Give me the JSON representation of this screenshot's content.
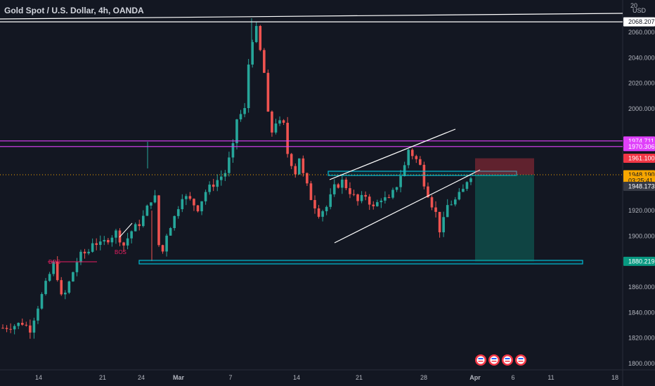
{
  "header": {
    "title": "Gold Spot / U.S. Dollar, 4h, OANDA",
    "currency": "USD",
    "scale_top": "20"
  },
  "chart_data": {
    "type": "candlestick",
    "ylim": [
      1792,
      2080
    ],
    "y_ticks": [
      1800,
      1820,
      1840,
      1860,
      1880,
      1900,
      1920,
      2000,
      2020,
      2040,
      2060
    ],
    "x_ticks": [
      "14",
      "21",
      "24",
      "Mar",
      "7",
      "14",
      "21",
      "28",
      "Apr",
      "6",
      "11",
      "18"
    ],
    "x_tick_bold": [
      "Mar",
      "Apr"
    ],
    "close_trend": [
      [
        0,
        1828
      ],
      [
        3,
        1830
      ],
      [
        5,
        1832
      ],
      [
        7,
        1827
      ],
      [
        9,
        1845
      ],
      [
        11,
        1862
      ],
      [
        13,
        1878
      ],
      [
        14,
        1868
      ],
      [
        15,
        1852
      ],
      [
        16,
        1855
      ],
      [
        18,
        1872
      ],
      [
        19,
        1880
      ],
      [
        20,
        1885
      ],
      [
        22,
        1888
      ],
      [
        23,
        1896
      ],
      [
        25,
        1893
      ],
      [
        27,
        1898
      ],
      [
        29,
        1903
      ],
      [
        31,
        1893
      ],
      [
        33,
        1904
      ],
      [
        35,
        1910
      ],
      [
        36,
        1915
      ],
      [
        38,
        1929
      ],
      [
        38.5,
        1965
      ],
      [
        38.8,
        1950
      ],
      [
        39.2,
        1910
      ],
      [
        40,
        1893
      ],
      [
        41,
        1888
      ],
      [
        42,
        1902
      ],
      [
        44,
        1915
      ],
      [
        46,
        1932
      ],
      [
        48,
        1928
      ],
      [
        50,
        1922
      ],
      [
        52,
        1935
      ],
      [
        55,
        1944
      ],
      [
        57,
        1950
      ],
      [
        59,
        1970
      ],
      [
        60,
        1992
      ],
      [
        62,
        1999
      ],
      [
        63,
        2035
      ],
      [
        64,
        2055
      ],
      [
        65,
        2062
      ],
      [
        66,
        2045
      ],
      [
        67,
        2028
      ],
      [
        68,
        1995
      ],
      [
        69,
        1982
      ],
      [
        70,
        1990
      ],
      [
        72,
        1987
      ],
      [
        73,
        1965
      ],
      [
        75,
        1950
      ],
      [
        76,
        1962
      ],
      [
        77,
        1948
      ],
      [
        79,
        1930
      ],
      [
        81,
        1918
      ],
      [
        83,
        1923
      ],
      [
        85,
        1938
      ],
      [
        87,
        1943
      ],
      [
        89,
        1935
      ],
      [
        91,
        1927
      ],
      [
        93,
        1932
      ],
      [
        95,
        1922
      ],
      [
        97,
        1930
      ],
      [
        99,
        1928
      ],
      [
        101,
        1940
      ],
      [
        102,
        1948
      ],
      [
        103,
        1955
      ],
      [
        104,
        1968
      ],
      [
        106,
        1960
      ],
      [
        107,
        1955
      ],
      [
        108,
        1942
      ],
      [
        110,
        1925
      ],
      [
        111,
        1918
      ],
      [
        112,
        1905
      ],
      [
        113,
        1912
      ],
      [
        114,
        1924
      ],
      [
        116,
        1928
      ],
      [
        118,
        1936
      ],
      [
        119,
        1944
      ],
      [
        120,
        1948
      ]
    ],
    "horizontal_lines": [
      {
        "name": "resistance-2068",
        "price": 2068.207,
        "color": "#ffffff"
      },
      {
        "name": "level-1974",
        "price": 1974.711,
        "color": "#e040fb"
      },
      {
        "name": "level-1970",
        "price": 1970.306,
        "color": "#e040fb"
      }
    ],
    "price_labels": [
      {
        "name": "label-2068",
        "price": 2068.207,
        "text": "2068.207",
        "bg": "#ffffff",
        "fg": "#131722"
      },
      {
        "name": "label-1974",
        "price": 1974.711,
        "text": "1974.711",
        "bg": "#e040fb",
        "fg": "#ffffff"
      },
      {
        "name": "label-1970",
        "price": 1970.306,
        "text": "1970.306",
        "bg": "#e040fb",
        "fg": "#ffffff"
      },
      {
        "name": "label-1961",
        "price": 1961.1,
        "text": "1961.100",
        "bg": "#f23645",
        "fg": "#ffffff"
      },
      {
        "name": "label-1948-current",
        "price": 1948.19,
        "text": "1948.190",
        "bg": "#f7a600",
        "fg": "#131722"
      },
      {
        "name": "label-countdown",
        "price": 1943.6,
        "text": "03:25:41",
        "bg": "#f7a600",
        "fg": "#131722"
      },
      {
        "name": "label-1948-entry",
        "price": 1939.1,
        "text": "1948.173",
        "bg": "#363a45",
        "fg": "#ffffff"
      },
      {
        "name": "label-1880",
        "price": 1880.219,
        "text": "1880.219",
        "bg": "#089981",
        "fg": "#ffffff"
      }
    ],
    "annotations": [
      {
        "text": "BOS"
      },
      {
        "text": "BOS"
      }
    ],
    "position": {
      "entry": 1948.173,
      "stop": 1961.1,
      "target": 1880.219
    },
    "colors": {
      "up": "#26a69a",
      "down": "#ef5350",
      "zone": "#00bcd4",
      "channel": "#ffffff"
    },
    "events_count": 4
  }
}
